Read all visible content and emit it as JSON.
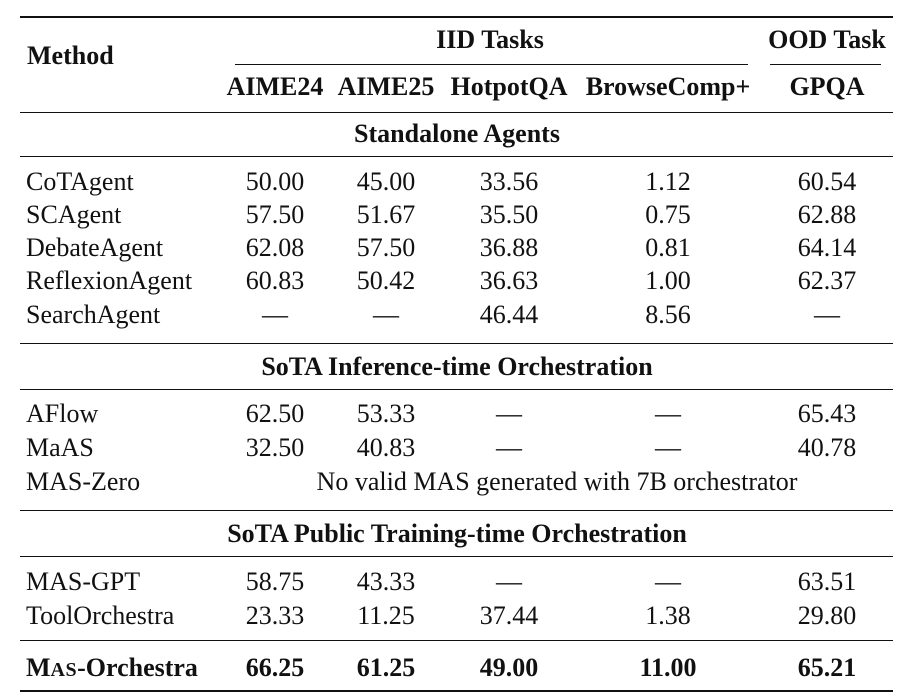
{
  "table": {
    "header": {
      "method_label": "Method",
      "iid_label": "IID Tasks",
      "ood_label": "OOD Task",
      "columns": [
        "AIME24",
        "AIME25",
        "HotpotQA",
        "BrowseComp+",
        "GPQA"
      ]
    },
    "sections": [
      {
        "title": "Standalone Agents",
        "rows": [
          {
            "method": "CoTAgent",
            "values": [
              "50.00",
              "45.00",
              "33.56",
              "1.12",
              "60.54"
            ]
          },
          {
            "method": "SCAgent",
            "values": [
              "57.50",
              "51.67",
              "35.50",
              "0.75",
              "62.88"
            ]
          },
          {
            "method": "DebateAgent",
            "values": [
              "62.08",
              "57.50",
              "36.88",
              "0.81",
              "64.14"
            ]
          },
          {
            "method": "ReflexionAgent",
            "values": [
              "60.83",
              "50.42",
              "36.63",
              "1.00",
              "62.37"
            ]
          },
          {
            "method": "SearchAgent",
            "values": [
              "—",
              "—",
              "46.44",
              "8.56",
              "—"
            ]
          }
        ]
      },
      {
        "title": "SoTA Inference-time Orchestration",
        "rows": [
          {
            "method": "AFlow",
            "values": [
              "62.50",
              "53.33",
              "—",
              "—",
              "65.43"
            ]
          },
          {
            "method": "MaAS",
            "values": [
              "32.50",
              "40.83",
              "—",
              "—",
              "40.78"
            ]
          },
          {
            "method": "MAS-Zero",
            "note": "No valid MAS generated with 7B orchestrator"
          }
        ]
      },
      {
        "title": "SoTA Public Training-time Orchestration",
        "rows": [
          {
            "method": "MAS-GPT",
            "values": [
              "58.75",
              "43.33",
              "—",
              "—",
              "63.51"
            ]
          },
          {
            "method": "ToolOrchestra",
            "values": [
              "23.33",
              "11.25",
              "37.44",
              "1.38",
              "29.80"
            ]
          }
        ]
      }
    ],
    "ours": {
      "method_first": "M",
      "method_smallcaps": "AS",
      "method_rest": "-Orchestra",
      "values": [
        "66.25",
        "61.25",
        "49.00",
        "11.00",
        "65.21"
      ]
    }
  }
}
